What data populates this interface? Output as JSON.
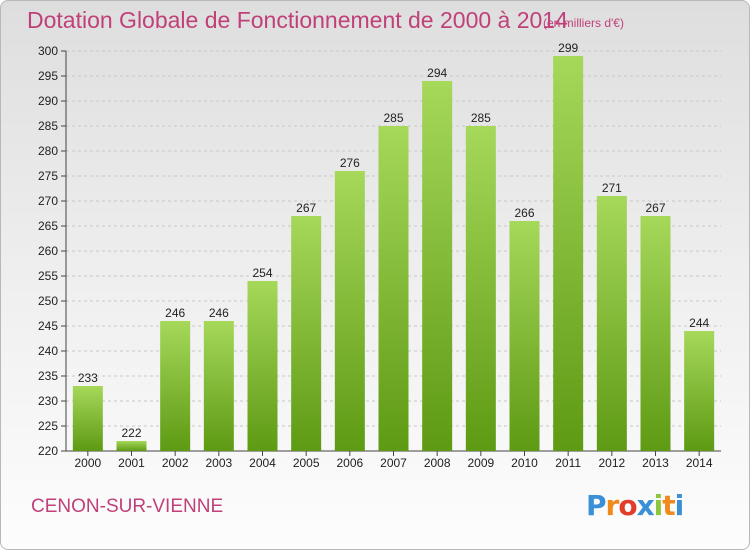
{
  "header": {
    "title": "Dotation Globale de Fonctionnement de 2000 à 2014",
    "subtitle": "(en milliers d'€)"
  },
  "footer": {
    "commune": "CENON-SUR-VIENNE",
    "logo": "Proxiti",
    "logo_colors": [
      "#3a8fd6",
      "#f08a1c",
      "#e23c2c",
      "#3a8fd6",
      "#8cc63f",
      "#f08a1c",
      "#3a8fd6"
    ]
  },
  "colors": {
    "title": "#c0407a",
    "bar_light": "#a6d85a",
    "bar_dark": "#5e9a14",
    "grid": "#c8c8c8"
  },
  "chart_data": {
    "type": "bar",
    "title": "Dotation Globale de Fonctionnement de 2000 à 2014",
    "subtitle": "(en milliers d'€)",
    "categories": [
      "2000",
      "2001",
      "2002",
      "2003",
      "2004",
      "2005",
      "2006",
      "2007",
      "2008",
      "2009",
      "2010",
      "2011",
      "2012",
      "2013",
      "2014"
    ],
    "values": [
      233,
      222,
      246,
      246,
      254,
      267,
      276,
      285,
      294,
      285,
      266,
      299,
      271,
      267,
      244
    ],
    "ylim": [
      220,
      300
    ],
    "yticks": [
      220,
      225,
      230,
      235,
      240,
      245,
      250,
      255,
      260,
      265,
      270,
      275,
      280,
      285,
      290,
      295,
      300
    ],
    "grid": true,
    "data_labels": true
  }
}
